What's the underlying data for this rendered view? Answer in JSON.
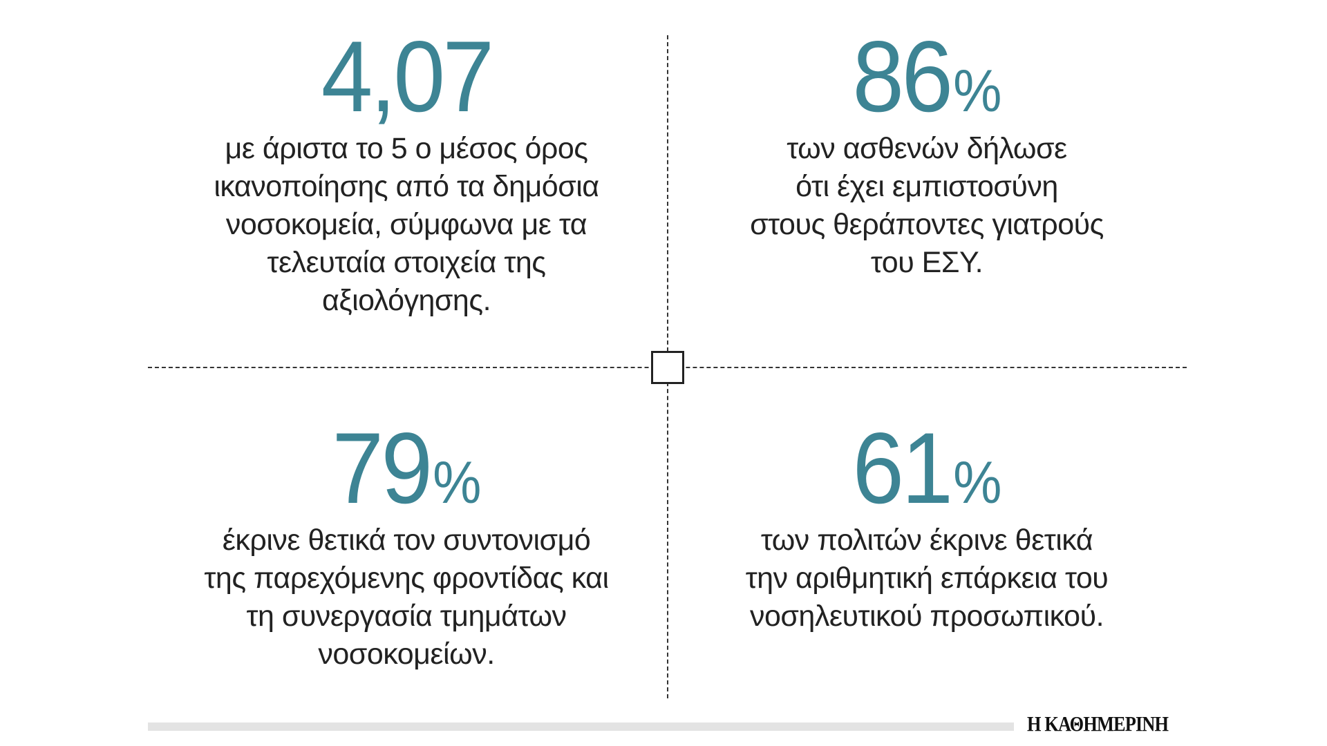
{
  "accent_color": "#3d8494",
  "stats": [
    {
      "value": "4,07",
      "unit": "",
      "lines": [
        "με άριστα το 5 ο μέσος όρος",
        "ικανοποίησης από τα δημόσια",
        "νοσοκομεία, σύμφωνα με τα",
        "τελευταία στοιχεία της",
        "αξιολόγησης."
      ]
    },
    {
      "value": "86",
      "unit": "%",
      "lines": [
        "των ασθενών δήλωσε",
        "ότι έχει εμπιστοσύνη",
        "στους θεράποντες γιατρούς",
        "του ΕΣΥ."
      ]
    },
    {
      "value": "79",
      "unit": "%",
      "lines": [
        "έκρινε θετικά τον συντονισμό",
        "της παρεχόμενης φροντίδας και",
        "τη συνεργασία τμημάτων",
        "νοσοκομείων."
      ]
    },
    {
      "value": "61",
      "unit": "%",
      "lines": [
        "των πολιτών έκρινε θετικά",
        "την αριθμητική επάρκεια του",
        "νοσηλευτικού προσωπικού."
      ]
    }
  ],
  "footer": {
    "logo": "Η ΚΑΘΗΜΕΡΙΝΗ"
  }
}
